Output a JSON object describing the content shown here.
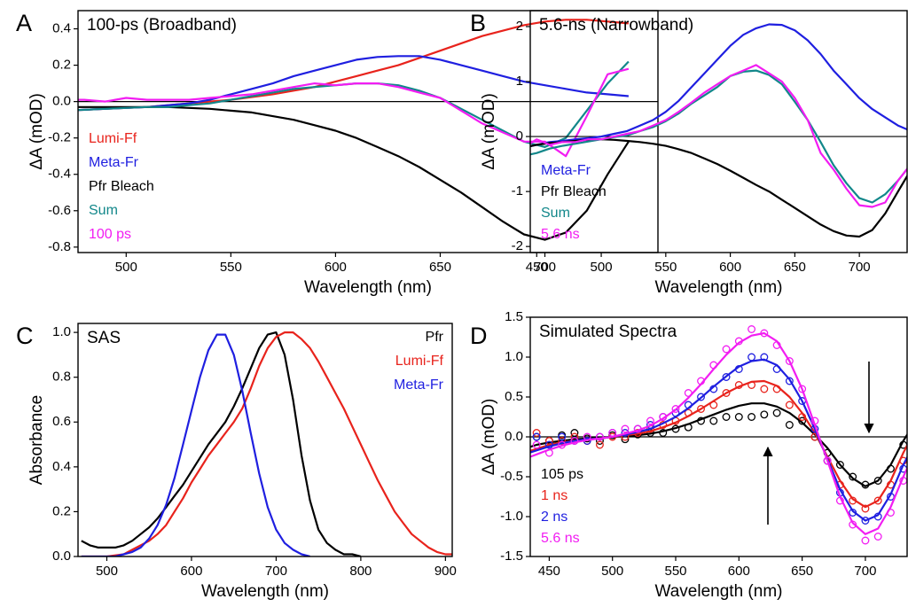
{
  "chart_data": [
    {
      "type": "line",
      "panel": "A",
      "title": "100-ps (Broadband)",
      "xlabel": "Wavelength (nm)",
      "ylabel": "ΔA (mOD)",
      "xlim": [
        477,
        754
      ],
      "ylim": [
        -0.83,
        0.5
      ],
      "xticks": [
        500,
        550,
        600,
        650,
        700
      ],
      "yticks": [
        -0.8,
        -0.6,
        -0.4,
        -0.2,
        {
          "value": 0,
          "label": "0.0"
        },
        0.2,
        0.4
      ],
      "zero_line": true,
      "legend_loc": "lower left",
      "x": [
        470,
        480,
        490,
        500,
        510,
        520,
        530,
        540,
        550,
        560,
        570,
        580,
        590,
        600,
        610,
        620,
        630,
        640,
        650,
        660,
        670,
        680,
        690,
        700,
        710,
        720,
        730,
        740
      ],
      "series": [
        {
          "name": "Lumi-Ff",
          "color": "#e8231c",
          "values": [
            -0.05,
            -0.045,
            -0.04,
            -0.035,
            -0.03,
            -0.02,
            -0.01,
            0,
            0.01,
            0.025,
            0.04,
            0.06,
            0.08,
            0.11,
            0.14,
            0.17,
            0.2,
            0.24,
            0.28,
            0.32,
            0.36,
            0.39,
            0.42,
            0.44,
            0.45,
            0.45,
            0.44,
            0.43
          ]
        },
        {
          "name": "Meta-Fr",
          "color": "#1f1fe0",
          "values": [
            -0.05,
            -0.045,
            -0.04,
            -0.035,
            -0.03,
            -0.02,
            -0.01,
            0.01,
            0.04,
            0.07,
            0.1,
            0.14,
            0.17,
            0.2,
            0.23,
            0.245,
            0.25,
            0.25,
            0.23,
            0.2,
            0.17,
            0.14,
            0.11,
            0.09,
            0.07,
            0.05,
            0.04,
            0.03
          ]
        },
        {
          "name": "Pfr Bleach",
          "color": "#000000",
          "values": [
            -0.03,
            -0.03,
            -0.03,
            -0.03,
            -0.03,
            -0.03,
            -0.035,
            -0.04,
            -0.05,
            -0.06,
            -0.08,
            -0.1,
            -0.13,
            -0.16,
            -0.2,
            -0.25,
            -0.3,
            -0.36,
            -0.43,
            -0.5,
            -0.58,
            -0.66,
            -0.73,
            -0.76,
            -0.72,
            -0.6,
            -0.4,
            -0.22
          ]
        },
        {
          "name": "Sum",
          "color": "#12878a",
          "values": [
            -0.05,
            -0.045,
            -0.04,
            -0.035,
            -0.03,
            -0.03,
            -0.02,
            -0.01,
            0.01,
            0.03,
            0.05,
            0.07,
            0.08,
            0.09,
            0.1,
            0.1,
            0.09,
            0.06,
            0.02,
            -0.04,
            -0.1,
            -0.16,
            -0.22,
            -0.25,
            -0.2,
            -0.05,
            0.1,
            0.22
          ]
        },
        {
          "name": "100 ps",
          "color": "#f21df2",
          "values": [
            0.01,
            0.01,
            0,
            0.02,
            0.01,
            0.01,
            0.01,
            0.02,
            0.03,
            0.04,
            0.06,
            0.08,
            0.1,
            0.09,
            0.1,
            0.1,
            0.08,
            0.05,
            0.02,
            -0.05,
            -0.12,
            -0.17,
            -0.22,
            -0.22,
            -0.3,
            -0.08,
            0.15,
            0.18
          ]
        }
      ]
    },
    {
      "type": "line",
      "panel": "B",
      "title": "5.6-ns (Narrowband)",
      "xlabel": "Wavelength (nm)",
      "ylabel": "ΔA (mOD)",
      "xlim": [
        445,
        737
      ],
      "ylim": [
        -2.11,
        2.29
      ],
      "xticks": [
        450,
        500,
        550,
        600,
        650,
        700
      ],
      "yticks": [
        -2,
        -1,
        0,
        1,
        2
      ],
      "zero_line": true,
      "legend_loc": "lower left",
      "x": [
        440,
        450,
        460,
        470,
        480,
        490,
        500,
        510,
        520,
        530,
        540,
        550,
        560,
        570,
        580,
        590,
        600,
        610,
        620,
        630,
        640,
        650,
        660,
        670,
        680,
        690,
        700,
        710,
        720,
        730,
        740
      ],
      "series": [
        {
          "name": "Meta-Fr",
          "color": "#1f1fe0",
          "values": [
            -0.2,
            -0.15,
            -0.1,
            -0.08,
            -0.05,
            -0.03,
            0,
            0.05,
            0.1,
            0.2,
            0.3,
            0.45,
            0.65,
            0.9,
            1.15,
            1.4,
            1.65,
            1.85,
            1.97,
            2.04,
            2.03,
            1.93,
            1.75,
            1.5,
            1.2,
            0.95,
            0.7,
            0.5,
            0.35,
            0.2,
            0.1
          ]
        },
        {
          "name": "Pfr Bleach",
          "color": "#000000",
          "values": [
            -0.2,
            -0.15,
            -0.12,
            -0.1,
            -0.08,
            -0.06,
            -0.05,
            -0.06,
            -0.08,
            -0.1,
            -0.13,
            -0.17,
            -0.23,
            -0.3,
            -0.4,
            -0.5,
            -0.62,
            -0.75,
            -0.88,
            -1.0,
            -1.15,
            -1.3,
            -1.45,
            -1.6,
            -1.72,
            -1.8,
            -1.82,
            -1.7,
            -1.4,
            -1.0,
            -0.6
          ]
        },
        {
          "name": "Sum",
          "color": "#12878a",
          "values": [
            -0.35,
            -0.3,
            -0.22,
            -0.17,
            -0.13,
            -0.09,
            -0.05,
            -0.01,
            0.02,
            0.1,
            0.17,
            0.28,
            0.42,
            0.6,
            0.75,
            0.9,
            1.1,
            1.18,
            1.2,
            1.12,
            0.95,
            0.63,
            0.3,
            -0.1,
            -0.52,
            -0.85,
            -1.12,
            -1.2,
            -1.05,
            -0.8,
            -0.5
          ]
        },
        {
          "name": "5.6 ns",
          "color": "#f21df2",
          "values": [
            -0.2,
            -0.05,
            -0.15,
            -0.1,
            -0.1,
            -0.05,
            -0.05,
            0,
            0.05,
            0.1,
            0.2,
            0.3,
            0.45,
            0.62,
            0.8,
            0.95,
            1.1,
            1.2,
            1.3,
            1.15,
            1.0,
            0.7,
            0.3,
            -0.3,
            -0.6,
            -0.95,
            -1.25,
            -1.28,
            -1.2,
            -0.8,
            -0.5
          ]
        }
      ]
    },
    {
      "type": "line",
      "panel": "C",
      "title": "SAS",
      "xlabel": "Wavelength (nm)",
      "ylabel": "Absorbance",
      "xlim": [
        466,
        908
      ],
      "ylim": [
        0,
        1.04
      ],
      "xticks": [
        500,
        600,
        700,
        800,
        900
      ],
      "yticks": [
        {
          "value": 0,
          "label": "0.0"
        },
        0.2,
        0.4,
        0.6,
        0.8,
        {
          "value": 1,
          "label": "1.0"
        }
      ],
      "zero_line": false,
      "legend_loc": "upper right",
      "x": [
        470,
        480,
        490,
        500,
        510,
        520,
        530,
        540,
        550,
        560,
        570,
        580,
        590,
        600,
        610,
        620,
        630,
        640,
        650,
        660,
        670,
        680,
        690,
        700,
        710,
        720,
        730,
        740,
        750,
        760,
        770,
        780,
        790,
        800,
        810,
        820,
        830,
        840,
        850,
        860,
        870,
        880,
        890,
        900,
        910
      ],
      "series": [
        {
          "name": "Pfr",
          "color": "#000000",
          "values": [
            0.07,
            0.05,
            0.04,
            0.04,
            0.04,
            0.05,
            0.07,
            0.1,
            0.13,
            0.17,
            0.22,
            0.27,
            0.32,
            0.38,
            0.44,
            0.5,
            0.55,
            0.6,
            0.67,
            0.75,
            0.84,
            0.93,
            0.99,
            1.0,
            0.9,
            0.7,
            0.45,
            0.25,
            0.12,
            0.06,
            0.03,
            0.01,
            0.01,
            0,
            null,
            null,
            null,
            null,
            null,
            null,
            null,
            null,
            null,
            null,
            null
          ]
        },
        {
          "name": "Lumi-Ff",
          "color": "#e8231c",
          "values": [
            0,
            0,
            0,
            0,
            0.005,
            0.01,
            0.03,
            0.05,
            0.07,
            0.1,
            0.14,
            0.2,
            0.26,
            0.33,
            0.39,
            0.45,
            0.5,
            0.55,
            0.6,
            0.66,
            0.75,
            0.85,
            0.93,
            0.98,
            1.0,
            1.0,
            0.97,
            0.93,
            0.87,
            0.8,
            0.73,
            0.66,
            0.58,
            0.5,
            0.42,
            0.34,
            0.27,
            0.2,
            0.15,
            0.1,
            0.07,
            0.04,
            0.02,
            0.01,
            0.01
          ]
        },
        {
          "name": "Meta-Fr",
          "color": "#1f1fe0",
          "values": [
            0,
            0,
            0,
            0,
            0,
            0.01,
            0.02,
            0.04,
            0.08,
            0.14,
            0.23,
            0.35,
            0.5,
            0.65,
            0.8,
            0.92,
            0.99,
            0.99,
            0.9,
            0.74,
            0.55,
            0.37,
            0.22,
            0.12,
            0.06,
            0.03,
            0.01,
            0,
            null,
            null,
            null,
            null,
            null,
            null,
            null,
            null,
            null,
            null,
            null,
            null,
            null,
            null,
            null,
            null,
            null
          ]
        }
      ]
    },
    {
      "type": "line",
      "panel": "D",
      "title": "Simulated Spectra",
      "xlabel": "Wavelength (nm)",
      "ylabel": "ΔA (mOD)",
      "xlim": [
        435,
        733
      ],
      "ylim": [
        -1.5,
        1.5
      ],
      "xticks": [
        450,
        500,
        550,
        600,
        650,
        700
      ],
      "yticks": [
        -1.5,
        {
          "value": -1,
          "label": "-1.0"
        },
        -0.5,
        {
          "value": 0,
          "label": "0.0"
        },
        0.5,
        {
          "value": 1,
          "label": "1.0"
        },
        1.5
      ],
      "zero_line": true,
      "legend_loc": "lower left",
      "x": [
        430,
        440,
        450,
        460,
        470,
        480,
        490,
        500,
        510,
        520,
        530,
        540,
        550,
        560,
        570,
        580,
        590,
        600,
        610,
        620,
        630,
        640,
        650,
        660,
        670,
        680,
        690,
        700,
        710,
        720,
        730,
        740
      ],
      "series": [
        {
          "name": "105 ps",
          "color": "#000000",
          "values": [
            -0.15,
            -0.1,
            -0.07,
            -0.05,
            -0.03,
            -0.02,
            -0.01,
            0,
            0.01,
            0.02,
            0.04,
            0.07,
            0.11,
            0.16,
            0.22,
            0.28,
            0.34,
            0.39,
            0.42,
            0.42,
            0.38,
            0.3,
            0.18,
            0.03,
            -0.14,
            -0.35,
            -0.52,
            -0.62,
            -0.55,
            -0.35,
            -0.05,
            0.2
          ],
          "markers": [
            0.05,
            0,
            -0.05,
            0.02,
            0.05,
            -0.02,
            -0.05,
            0.02,
            -0.03,
            0.03,
            0.05,
            0.05,
            0.1,
            0.12,
            0.2,
            0.2,
            0.25,
            0.25,
            0.25,
            0.28,
            0.3,
            0.15,
            0.2,
            0,
            -0.2,
            -0.35,
            -0.5,
            -0.6,
            -0.55,
            -0.4,
            -0.1,
            0.15
          ]
        },
        {
          "name": "1 ns",
          "color": "#e8231c",
          "values": [
            -0.2,
            -0.15,
            -0.1,
            -0.07,
            -0.05,
            -0.03,
            -0.02,
            0,
            0.02,
            0.04,
            0.07,
            0.12,
            0.18,
            0.26,
            0.35,
            0.45,
            0.55,
            0.63,
            0.69,
            0.7,
            0.64,
            0.5,
            0.3,
            0.05,
            -0.25,
            -0.55,
            -0.78,
            -0.88,
            -0.8,
            -0.55,
            -0.2,
            0.1
          ],
          "markers": [
            0,
            0.05,
            -0.05,
            -0.05,
            0,
            -0.05,
            -0.1,
            0,
            0,
            0.05,
            0.1,
            0.15,
            0.2,
            0.3,
            0.35,
            0.4,
            0.55,
            0.65,
            0.65,
            0.6,
            0.6,
            0.4,
            0.25,
            0,
            -0.3,
            -0.6,
            -0.8,
            -0.9,
            -0.8,
            -0.6,
            -0.3,
            0
          ]
        },
        {
          "name": "2 ns",
          "color": "#1f1fe0",
          "values": [
            -0.22,
            -0.17,
            -0.12,
            -0.08,
            -0.05,
            -0.03,
            -0.02,
            0,
            0.03,
            0.06,
            0.1,
            0.17,
            0.25,
            0.36,
            0.49,
            0.63,
            0.76,
            0.88,
            0.95,
            0.97,
            0.9,
            0.72,
            0.45,
            0.1,
            -0.28,
            -0.66,
            -0.93,
            -1.05,
            -0.98,
            -0.72,
            -0.35,
            -0.05
          ],
          "markers": [
            -0.1,
            0,
            -0.1,
            0,
            -0.05,
            -0.05,
            0,
            0.05,
            0.05,
            0.1,
            0.15,
            0.25,
            0.3,
            0.4,
            0.5,
            0.6,
            0.75,
            0.85,
            1.0,
            1.0,
            0.85,
            0.7,
            0.45,
            0.1,
            -0.3,
            -0.7,
            -0.95,
            -1.05,
            -1.0,
            -0.75,
            -0.4,
            -0.1
          ]
        },
        {
          "name": "5.6 ns",
          "color": "#f21df2",
          "values": [
            -0.28,
            -0.22,
            -0.16,
            -0.11,
            -0.07,
            -0.04,
            -0.02,
            0,
            0.04,
            0.08,
            0.14,
            0.23,
            0.34,
            0.49,
            0.66,
            0.85,
            1.03,
            1.18,
            1.27,
            1.3,
            1.2,
            0.95,
            0.6,
            0.15,
            -0.3,
            -0.75,
            -1.08,
            -1.22,
            -1.15,
            -0.88,
            -0.5,
            -0.15
          ],
          "markers": [
            -0.2,
            -0.1,
            -0.2,
            -0.1,
            -0.05,
            0,
            0,
            0.05,
            0.1,
            0.1,
            0.2,
            0.25,
            0.35,
            0.55,
            0.7,
            0.9,
            1.1,
            1.2,
            1.35,
            1.3,
            1.15,
            0.95,
            0.6,
            0.2,
            -0.3,
            -0.8,
            -1.1,
            -1.3,
            -1.25,
            -0.95,
            -0.55,
            -0.2
          ]
        }
      ]
    }
  ]
}
